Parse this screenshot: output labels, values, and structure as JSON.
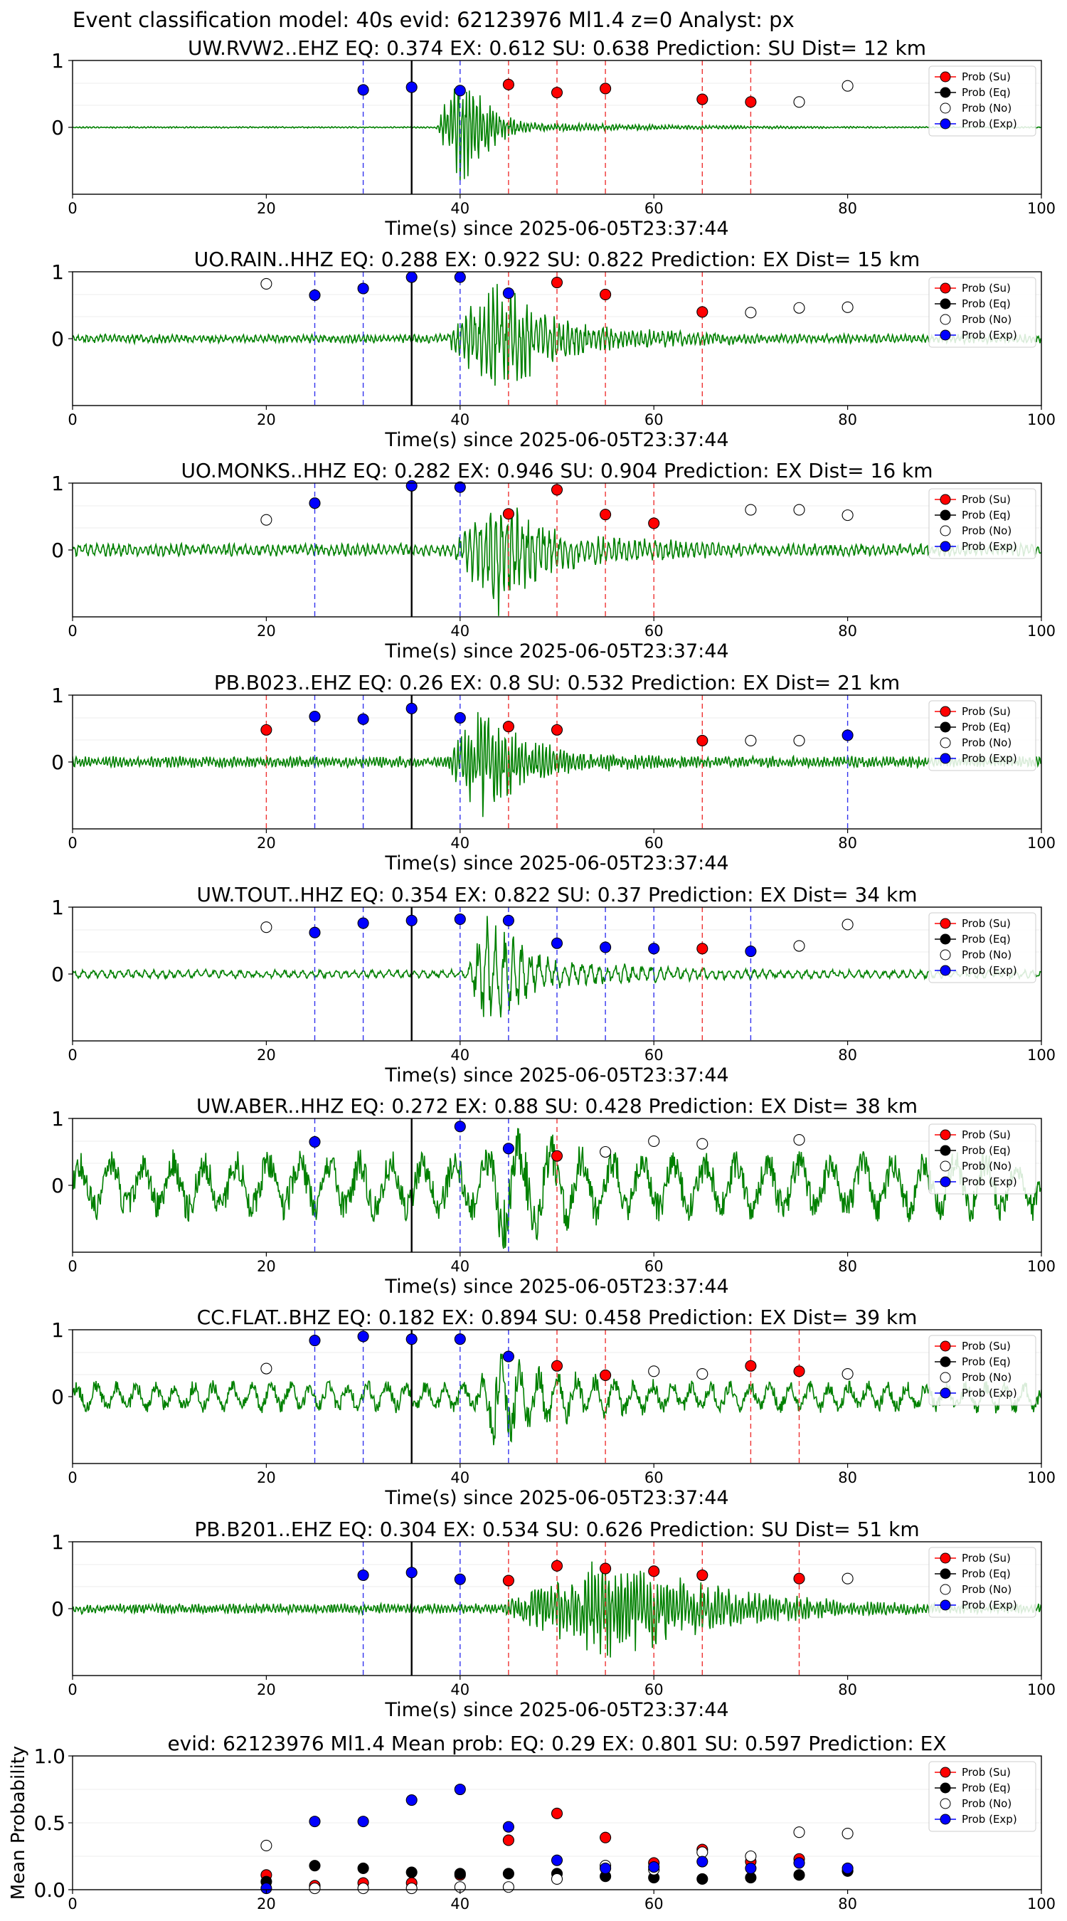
{
  "header": {
    "suptitle": "Event classification model: 40s evid: 62123976 Ml1.4 z=0 Analyst: px"
  },
  "legend_labels": [
    "Prob (Su)",
    "Prob (Eq)",
    "Prob (No)",
    "Prob (Exp)"
  ],
  "colors": {
    "waveform": "#008000",
    "su": "#ff0000",
    "eq": "#000000",
    "no": "#ffffff",
    "exp": "#0000ff",
    "su_line": "#ee3333",
    "exp_line": "#3333ee",
    "pick_line": "#000000"
  },
  "chart_data": [
    {
      "type": "scatter",
      "title": "UW.RVW2..EHZ   EQ: 0.374  EX: 0.612  SU: 0.638   Prediction: SU    Dist= 12 km",
      "xlabel": "Time(s) since 2025-06-05T23:37:44",
      "xlim": [
        0,
        100
      ],
      "ylim": [
        -1,
        1
      ],
      "xticks": [
        "0",
        "20",
        "40",
        "60",
        "80",
        "100"
      ],
      "yticks": [
        "1",
        "0"
      ],
      "pick_time": 35,
      "waveform": {
        "onset": 37.5,
        "peak": 40,
        "duration": 7,
        "noise": 0.012,
        "coda": 0.08,
        "burst": 1.0,
        "period": 0.35,
        "seed": 11
      },
      "series": [
        {
          "name": "Prob (Su)",
          "points": [
            [
              45,
              0.64
            ],
            [
              50,
              0.52
            ],
            [
              55,
              0.58
            ],
            [
              65,
              0.42
            ],
            [
              70,
              0.38
            ]
          ]
        },
        {
          "name": "Prob (No)",
          "points": [
            [
              75,
              0.38
            ],
            [
              80,
              0.62
            ]
          ]
        },
        {
          "name": "Prob (Exp)",
          "points": [
            [
              30,
              0.56
            ],
            [
              35,
              0.6
            ],
            [
              40,
              0.55
            ]
          ]
        }
      ],
      "su_lines": [
        45,
        50,
        55,
        65,
        70
      ],
      "exp_lines": [
        30,
        40
      ]
    },
    {
      "type": "scatter",
      "title": "UO.RAIN..HHZ   EQ: 0.288  EX: 0.922  SU: 0.822   Prediction: EX    Dist= 15 km",
      "xlabel": "Time(s) since 2025-06-05T23:37:44",
      "xlim": [
        0,
        100
      ],
      "ylim": [
        -1,
        1
      ],
      "xticks": [
        "0",
        "20",
        "40",
        "60",
        "80",
        "100"
      ],
      "yticks": [
        "1",
        "0"
      ],
      "pick_time": 35,
      "waveform": {
        "onset": 38,
        "peak": 44,
        "duration": 14,
        "noise": 0.07,
        "coda": 0.16,
        "burst": 1.0,
        "period": 0.45,
        "seed": 23
      },
      "series": [
        {
          "name": "Prob (Su)",
          "points": [
            [
              50,
              0.84
            ],
            [
              55,
              0.66
            ],
            [
              65,
              0.4
            ]
          ]
        },
        {
          "name": "Prob (No)",
          "points": [
            [
              20,
              0.82
            ],
            [
              70,
              0.39
            ],
            [
              75,
              0.46
            ],
            [
              80,
              0.47
            ]
          ]
        },
        {
          "name": "Prob (Exp)",
          "points": [
            [
              25,
              0.65
            ],
            [
              30,
              0.75
            ],
            [
              35,
              0.92
            ],
            [
              40,
              0.92
            ],
            [
              45,
              0.68
            ]
          ]
        }
      ],
      "su_lines": [
        45,
        50,
        55,
        65
      ],
      "exp_lines": [
        25,
        30,
        40
      ]
    },
    {
      "type": "scatter",
      "title": "UO.MONKS..HHZ   EQ: 0.282  EX: 0.946  SU: 0.904   Prediction: EX    Dist= 16 km",
      "xlabel": "Time(s) since 2025-06-05T23:37:44",
      "xlim": [
        0,
        100
      ],
      "ylim": [
        -1,
        1
      ],
      "xticks": [
        "0",
        "20",
        "40",
        "60",
        "80",
        "100"
      ],
      "yticks": [
        "1",
        "0"
      ],
      "pick_time": 35,
      "waveform": {
        "onset": 38.5,
        "peak": 44,
        "duration": 14,
        "noise": 0.1,
        "coda": 0.2,
        "burst": 1.0,
        "period": 0.55,
        "seed": 37
      },
      "series": [
        {
          "name": "Prob (Su)",
          "points": [
            [
              45,
              0.54
            ],
            [
              50,
              0.9
            ],
            [
              55,
              0.53
            ],
            [
              60,
              0.4
            ]
          ]
        },
        {
          "name": "Prob (No)",
          "points": [
            [
              20,
              0.45
            ],
            [
              70,
              0.6
            ],
            [
              75,
              0.6
            ],
            [
              80,
              0.52
            ]
          ]
        },
        {
          "name": "Prob (Exp)",
          "points": [
            [
              25,
              0.7
            ],
            [
              35,
              0.96
            ],
            [
              40,
              0.94
            ]
          ]
        }
      ],
      "su_lines": [
        45,
        50,
        55,
        60
      ],
      "exp_lines": [
        25,
        40
      ]
    },
    {
      "type": "scatter",
      "title": "PB.B023..EHZ   EQ: 0.26  EX: 0.8  SU: 0.532   Prediction: EX    Dist= 21 km",
      "xlabel": "Time(s) since 2025-06-05T23:37:44",
      "xlim": [
        0,
        100
      ],
      "ylim": [
        -1,
        1
      ],
      "xticks": [
        "0",
        "20",
        "40",
        "60",
        "80",
        "100"
      ],
      "yticks": [
        "1",
        "0"
      ],
      "pick_time": 35,
      "waveform": {
        "onset": 38.5,
        "peak": 42,
        "duration": 12,
        "noise": 0.09,
        "coda": 0.15,
        "burst": 1.0,
        "period": 0.35,
        "seed": 41
      },
      "series": [
        {
          "name": "Prob (Su)",
          "points": [
            [
              20,
              0.48
            ],
            [
              45,
              0.53
            ],
            [
              50,
              0.48
            ],
            [
              65,
              0.32
            ]
          ]
        },
        {
          "name": "Prob (No)",
          "points": [
            [
              70,
              0.32
            ],
            [
              75,
              0.32
            ]
          ]
        },
        {
          "name": "Prob (Exp)",
          "points": [
            [
              25,
              0.68
            ],
            [
              30,
              0.64
            ],
            [
              35,
              0.8
            ],
            [
              40,
              0.66
            ],
            [
              80,
              0.4
            ]
          ]
        }
      ],
      "su_lines": [
        20,
        45,
        50,
        65
      ],
      "exp_lines": [
        25,
        30,
        40,
        80
      ]
    },
    {
      "type": "scatter",
      "title": "UW.TOUT..HHZ   EQ: 0.354  EX: 0.822  SU: 0.37   Prediction: EX    Dist= 34 km",
      "xlabel": "Time(s) since 2025-06-05T23:37:44",
      "xlim": [
        0,
        100
      ],
      "ylim": [
        -1,
        1
      ],
      "xticks": [
        "0",
        "20",
        "40",
        "60",
        "80",
        "100"
      ],
      "yticks": [
        "1",
        "0"
      ],
      "pick_time": 35,
      "waveform": {
        "onset": 40.5,
        "peak": 42.5,
        "duration": 12,
        "noise": 0.07,
        "coda": 0.18,
        "burst": 1.0,
        "period": 0.9,
        "seed": 53
      },
      "series": [
        {
          "name": "Prob (Su)",
          "points": [
            [
              65,
              0.38
            ]
          ]
        },
        {
          "name": "Prob (No)",
          "points": [
            [
              20,
              0.7
            ],
            [
              75,
              0.42
            ],
            [
              80,
              0.74
            ]
          ]
        },
        {
          "name": "Prob (Exp)",
          "points": [
            [
              25,
              0.62
            ],
            [
              30,
              0.76
            ],
            [
              35,
              0.8
            ],
            [
              40,
              0.82
            ],
            [
              45,
              0.8
            ],
            [
              50,
              0.46
            ],
            [
              55,
              0.4
            ],
            [
              60,
              0.38
            ],
            [
              70,
              0.34
            ]
          ]
        }
      ],
      "su_lines": [
        65
      ],
      "exp_lines": [
        25,
        30,
        40,
        45,
        50,
        55,
        60,
        70
      ]
    },
    {
      "type": "scatter",
      "title": "UW.ABER..HHZ   EQ: 0.272  EX: 0.88  SU: 0.428   Prediction: EX    Dist= 38 km",
      "xlabel": "Time(s) since 2025-06-05T23:37:44",
      "xlim": [
        0,
        100
      ],
      "ylim": [
        -1,
        1
      ],
      "xticks": [
        "0",
        "20",
        "40",
        "60",
        "80",
        "100"
      ],
      "yticks": [
        "1",
        "0"
      ],
      "pick_time": 35,
      "waveform": {
        "onset": 40,
        "peak": 44.5,
        "duration": 12,
        "noise": 0.55,
        "coda": 0.55,
        "burst": 1.0,
        "period": 3.2,
        "seed": 67
      },
      "series": [
        {
          "name": "Prob (Su)",
          "points": [
            [
              50,
              0.44
            ]
          ]
        },
        {
          "name": "Prob (No)",
          "points": [
            [
              55,
              0.5
            ],
            [
              60,
              0.66
            ],
            [
              65,
              0.62
            ],
            [
              75,
              0.68
            ]
          ]
        },
        {
          "name": "Prob (Exp)",
          "points": [
            [
              25,
              0.65
            ],
            [
              40,
              0.88
            ],
            [
              45,
              0.55
            ]
          ]
        }
      ],
      "su_lines": [
        50
      ],
      "exp_lines": [
        25,
        40,
        45
      ]
    },
    {
      "type": "scatter",
      "title": "CC.FLAT..BHZ   EQ: 0.182  EX: 0.894  SU: 0.458   Prediction: EX    Dist= 39 km",
      "xlabel": "Time(s) since 2025-06-05T23:37:44",
      "xlim": [
        0,
        100
      ],
      "ylim": [
        -1,
        1
      ],
      "xticks": [
        "0",
        "20",
        "40",
        "60",
        "80",
        "100"
      ],
      "yticks": [
        "1",
        "0"
      ],
      "pick_time": 35,
      "waveform": {
        "onset": 41,
        "peak": 44,
        "duration": 14,
        "noise": 0.25,
        "coda": 0.3,
        "burst": 1.0,
        "period": 2.0,
        "seed": 79
      },
      "series": [
        {
          "name": "Prob (Su)",
          "points": [
            [
              50,
              0.46
            ],
            [
              55,
              0.32
            ],
            [
              70,
              0.46
            ],
            [
              75,
              0.38
            ]
          ]
        },
        {
          "name": "Prob (No)",
          "points": [
            [
              20,
              0.42
            ],
            [
              60,
              0.38
            ],
            [
              65,
              0.34
            ],
            [
              80,
              0.34
            ]
          ]
        },
        {
          "name": "Prob (Exp)",
          "points": [
            [
              25,
              0.84
            ],
            [
              30,
              0.9
            ],
            [
              35,
              0.86
            ],
            [
              40,
              0.86
            ],
            [
              45,
              0.6
            ]
          ]
        }
      ],
      "su_lines": [
        50,
        55,
        70,
        75
      ],
      "exp_lines": [
        25,
        30,
        40,
        45
      ]
    },
    {
      "type": "scatter",
      "title": "PB.B201..EHZ   EQ: 0.304  EX: 0.534  SU: 0.626   Prediction: SU    Dist= 51 km",
      "xlabel": "Time(s) since 2025-06-05T23:37:44",
      "xlim": [
        0,
        100
      ],
      "ylim": [
        -1,
        1
      ],
      "xticks": [
        "0",
        "20",
        "40",
        "60",
        "80",
        "100"
      ],
      "yticks": [
        "1",
        "0"
      ],
      "pick_time": 35,
      "waveform": {
        "onset": 43,
        "peak": 55,
        "duration": 30,
        "noise": 0.08,
        "coda": 0.1,
        "burst": 0.85,
        "period": 0.35,
        "seed": 97
      },
      "series": [
        {
          "name": "Prob (Su)",
          "points": [
            [
              45,
              0.42
            ],
            [
              50,
              0.64
            ],
            [
              55,
              0.6
            ],
            [
              60,
              0.56
            ],
            [
              65,
              0.5
            ],
            [
              75,
              0.45
            ]
          ]
        },
        {
          "name": "Prob (No)",
          "points": [
            [
              80,
              0.45
            ]
          ]
        },
        {
          "name": "Prob (Exp)",
          "points": [
            [
              30,
              0.5
            ],
            [
              35,
              0.54
            ],
            [
              40,
              0.44
            ]
          ]
        }
      ],
      "su_lines": [
        45,
        50,
        55,
        60,
        65,
        75
      ],
      "exp_lines": [
        30,
        40
      ]
    },
    {
      "type": "scatter",
      "title": "evid: 62123976   Ml1.4   Mean prob:    EQ: 0.29  EX: 0.801  SU: 0.597   Prediction: EX",
      "xlabel": "",
      "ylabel": "Mean Probability",
      "xlim": [
        0,
        100
      ],
      "ylim": [
        0,
        1
      ],
      "xticks": [
        "0",
        "20",
        "40",
        "60",
        "80",
        "100"
      ],
      "yticks": [
        "0.0",
        "0.5",
        "1.0"
      ],
      "series": [
        {
          "name": "Prob (Su)",
          "points": [
            [
              20,
              0.11
            ],
            [
              25,
              0.03
            ],
            [
              30,
              0.05
            ],
            [
              35,
              0.05
            ],
            [
              40,
              0.11
            ],
            [
              45,
              0.37
            ],
            [
              50,
              0.57
            ],
            [
              55,
              0.39
            ],
            [
              60,
              0.2
            ],
            [
              65,
              0.3
            ],
            [
              70,
              0.21
            ],
            [
              75,
              0.23
            ],
            [
              80,
              0.14
            ]
          ]
        },
        {
          "name": "Prob (Eq)",
          "points": [
            [
              20,
              0.06
            ],
            [
              25,
              0.18
            ],
            [
              30,
              0.16
            ],
            [
              35,
              0.13
            ],
            [
              40,
              0.12
            ],
            [
              45,
              0.12
            ],
            [
              50,
              0.12
            ],
            [
              55,
              0.1
            ],
            [
              60,
              0.09
            ],
            [
              65,
              0.08
            ],
            [
              70,
              0.09
            ],
            [
              75,
              0.11
            ],
            [
              80,
              0.14
            ]
          ]
        },
        {
          "name": "Prob (No)",
          "points": [
            [
              20,
              0.33
            ],
            [
              25,
              0.01
            ],
            [
              30,
              0.01
            ],
            [
              35,
              0.01
            ],
            [
              40,
              0.02
            ],
            [
              45,
              0.02
            ],
            [
              50,
              0.08
            ],
            [
              55,
              0.18
            ],
            [
              60,
              0.15
            ],
            [
              65,
              0.28
            ],
            [
              70,
              0.25
            ],
            [
              75,
              0.43
            ],
            [
              80,
              0.42
            ]
          ]
        },
        {
          "name": "Prob (Exp)",
          "points": [
            [
              20,
              0.01
            ],
            [
              25,
              0.51
            ],
            [
              30,
              0.51
            ],
            [
              35,
              0.67
            ],
            [
              40,
              0.75
            ],
            [
              45,
              0.47
            ],
            [
              50,
              0.22
            ],
            [
              55,
              0.16
            ],
            [
              60,
              0.17
            ],
            [
              65,
              0.21
            ],
            [
              70,
              0.16
            ],
            [
              75,
              0.2
            ],
            [
              80,
              0.16
            ]
          ]
        }
      ]
    }
  ]
}
